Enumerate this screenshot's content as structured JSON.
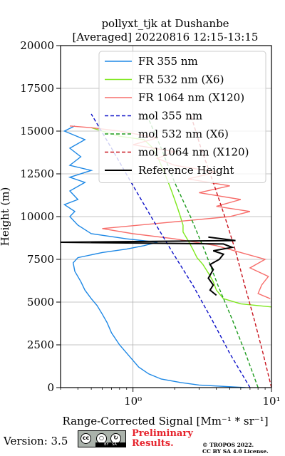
{
  "chart_data": {
    "type": "line",
    "title_line1": "pollyxt_tjk at Dushanbe",
    "title_line2": "[Averaged] 20220816 12:15-13:15",
    "xlabel": "Range-Corrected Signal [Mm⁻¹ * sr⁻¹]",
    "ylabel": "Height (m)",
    "xscale": "log",
    "xlim": [
      0.3,
      10
    ],
    "ylim": [
      0,
      20000
    ],
    "x_major_ticks": [
      {
        "value": 1,
        "label": "10⁰"
      },
      {
        "value": 10,
        "label": "10¹"
      }
    ],
    "y_ticks": [
      0,
      2500,
      5000,
      7500,
      10000,
      12500,
      15000,
      17500,
      20000
    ],
    "y_tick_labels": [
      "0",
      "2500",
      "5000",
      "7500",
      "10000",
      "12500",
      "15000",
      "17500",
      "20000"
    ],
    "grid": true,
    "legend_position": "top-right",
    "series": [
      {
        "name": "FR 355 nm",
        "color": "#1e88e5",
        "style": "solid",
        "points": [
          [
            6.5,
            0
          ],
          [
            3.0,
            150
          ],
          [
            2.2,
            300
          ],
          [
            1.6,
            500
          ],
          [
            1.3,
            800
          ],
          [
            1.1,
            1200
          ],
          [
            0.95,
            1800
          ],
          [
            0.8,
            2500
          ],
          [
            0.7,
            3200
          ],
          [
            0.65,
            3800
          ],
          [
            0.6,
            4300
          ],
          [
            0.55,
            4800
          ],
          [
            0.5,
            5200
          ],
          [
            0.45,
            5700
          ],
          [
            0.42,
            6200
          ],
          [
            0.38,
            6800
          ],
          [
            0.37,
            7300
          ],
          [
            0.4,
            7600
          ],
          [
            0.6,
            7900
          ],
          [
            0.9,
            8100
          ],
          [
            1.2,
            8300
          ],
          [
            1.5,
            8500
          ],
          [
            0.9,
            8700
          ],
          [
            0.5,
            9000
          ],
          [
            0.4,
            9500
          ],
          [
            0.35,
            10000
          ],
          [
            0.38,
            10300
          ],
          [
            0.32,
            10700
          ],
          [
            0.4,
            11000
          ],
          [
            0.35,
            11500
          ],
          [
            0.45,
            12000
          ],
          [
            0.35,
            12300
          ],
          [
            0.5,
            12700
          ],
          [
            0.35,
            13000
          ],
          [
            0.42,
            13500
          ],
          [
            0.35,
            14000
          ],
          [
            0.45,
            14500
          ],
          [
            0.32,
            15000
          ],
          [
            0.38,
            15300
          ]
        ]
      },
      {
        "name": "FR 532 nm (X6)",
        "color": "#7ee81c",
        "style": "solid",
        "points": [
          [
            10.5,
            4700
          ],
          [
            6.0,
            4900
          ],
          [
            4.5,
            5200
          ],
          [
            4.0,
            5700
          ],
          [
            3.8,
            6200
          ],
          [
            3.5,
            6700
          ],
          [
            3.2,
            7200
          ],
          [
            2.9,
            7600
          ],
          [
            2.7,
            8100
          ],
          [
            2.5,
            8600
          ],
          [
            2.3,
            9100
          ],
          [
            2.3,
            9500
          ],
          [
            2.2,
            10000
          ],
          [
            2.1,
            10500
          ],
          [
            2.0,
            11000
          ],
          [
            1.9,
            11500
          ],
          [
            1.8,
            12000
          ],
          [
            1.7,
            12500
          ],
          [
            1.6,
            13000
          ],
          [
            1.5,
            13500
          ],
          [
            1.4,
            14000
          ],
          [
            1.2,
            14500
          ],
          [
            0.8,
            14700
          ],
          [
            0.6,
            15000
          ],
          [
            0.5,
            15200
          ]
        ]
      },
      {
        "name": "FR 1064 nm (X120)",
        "color": "#f76e6b",
        "style": "solid",
        "points": [
          [
            9.8,
            5200
          ],
          [
            8.0,
            5500
          ],
          [
            8.5,
            6000
          ],
          [
            9.5,
            6500
          ],
          [
            7.0,
            7000
          ],
          [
            9.0,
            7500
          ],
          [
            6.0,
            7900
          ],
          [
            4.0,
            8300
          ],
          [
            2.0,
            8700
          ],
          [
            1.0,
            9000
          ],
          [
            0.6,
            9300
          ],
          [
            1.5,
            9600
          ],
          [
            5.0,
            10000
          ],
          [
            7.0,
            10300
          ],
          [
            4.0,
            10600
          ],
          [
            6.0,
            11000
          ],
          [
            3.0,
            11400
          ],
          [
            5.0,
            11800
          ],
          [
            2.5,
            12200
          ],
          [
            4.0,
            12600
          ],
          [
            2.0,
            13000
          ],
          [
            1.5,
            13400
          ],
          [
            2.0,
            13800
          ],
          [
            1.0,
            14200
          ],
          [
            1.5,
            14600
          ],
          [
            0.8,
            15000
          ],
          [
            0.5,
            15200
          ],
          [
            0.35,
            15300
          ]
        ]
      },
      {
        "name": "mol 355 nm",
        "color": "#0c10c8",
        "style": "dashed",
        "points": [
          [
            7.0,
            0
          ],
          [
            5.0,
            2000
          ],
          [
            3.7,
            4000
          ],
          [
            2.7,
            6000
          ],
          [
            1.9,
            8000
          ],
          [
            1.35,
            10000
          ],
          [
            0.97,
            12000
          ],
          [
            0.7,
            14000
          ],
          [
            0.5,
            16000
          ]
        ]
      },
      {
        "name": "mol 532 nm (X6)",
        "color": "#1e9c1e",
        "style": "dashed",
        "points": [
          [
            8.0,
            0
          ],
          [
            6.5,
            2000
          ],
          [
            5.2,
            4000
          ],
          [
            4.1,
            6000
          ],
          [
            3.3,
            8000
          ],
          [
            2.6,
            10000
          ],
          [
            2.0,
            12000
          ],
          [
            1.6,
            14000
          ],
          [
            1.25,
            16000
          ]
        ]
      },
      {
        "name": "mol 1064 nm (X120)",
        "color": "#c8141e",
        "style": "dashed",
        "points": [
          [
            10.0,
            0
          ],
          [
            8.7,
            2000
          ],
          [
            7.5,
            4000
          ],
          [
            6.4,
            6000
          ],
          [
            5.5,
            8000
          ],
          [
            4.6,
            10000
          ],
          [
            3.8,
            12000
          ],
          [
            3.1,
            14000
          ],
          [
            2.6,
            16000
          ]
        ]
      },
      {
        "name": "Reference Height",
        "color": "#000000",
        "style": "solid",
        "points": [
          [
            4.0,
            5400
          ],
          [
            3.6,
            5700
          ],
          [
            3.8,
            6000
          ],
          [
            3.5,
            6400
          ],
          [
            3.8,
            6900
          ],
          [
            3.6,
            7200
          ],
          [
            4.2,
            7500
          ],
          [
            4.5,
            7800
          ],
          [
            3.8,
            8000
          ],
          [
            5.2,
            8200
          ],
          [
            4.5,
            8400
          ],
          [
            0.3,
            8500
          ],
          [
            5.5,
            8600
          ],
          [
            3.5,
            8800
          ]
        ]
      }
    ]
  },
  "footer": {
    "version": "Version: 3.5",
    "preliminary_line1": "Preliminary",
    "preliminary_line2": "Results.",
    "tropos_line1": "© TROPOS 2022.",
    "tropos_line2": "CC BY SA 4.0 License.",
    "cc_by": "BY",
    "cc_sa": "SA"
  }
}
